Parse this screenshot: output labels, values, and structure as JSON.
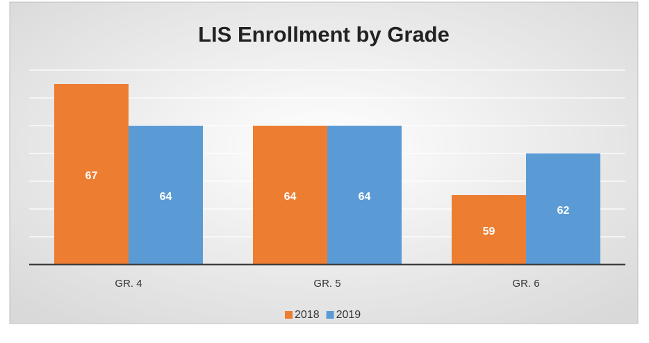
{
  "chart_data": {
    "type": "bar",
    "title": "LIS Enrollment by Grade",
    "categories": [
      "GR. 4",
      "GR. 5",
      "GR. 6"
    ],
    "series": [
      {
        "name": "2018",
        "color": "#ed7d31",
        "values": [
          67,
          64,
          59
        ]
      },
      {
        "name": "2019",
        "color": "#5b9bd5",
        "values": [
          64,
          64,
          62
        ]
      }
    ],
    "ylim": [
      54,
      68
    ],
    "yticks": [
      54,
      56,
      58,
      60,
      62,
      64,
      66,
      68
    ],
    "grid": true,
    "legend": "bottom"
  }
}
